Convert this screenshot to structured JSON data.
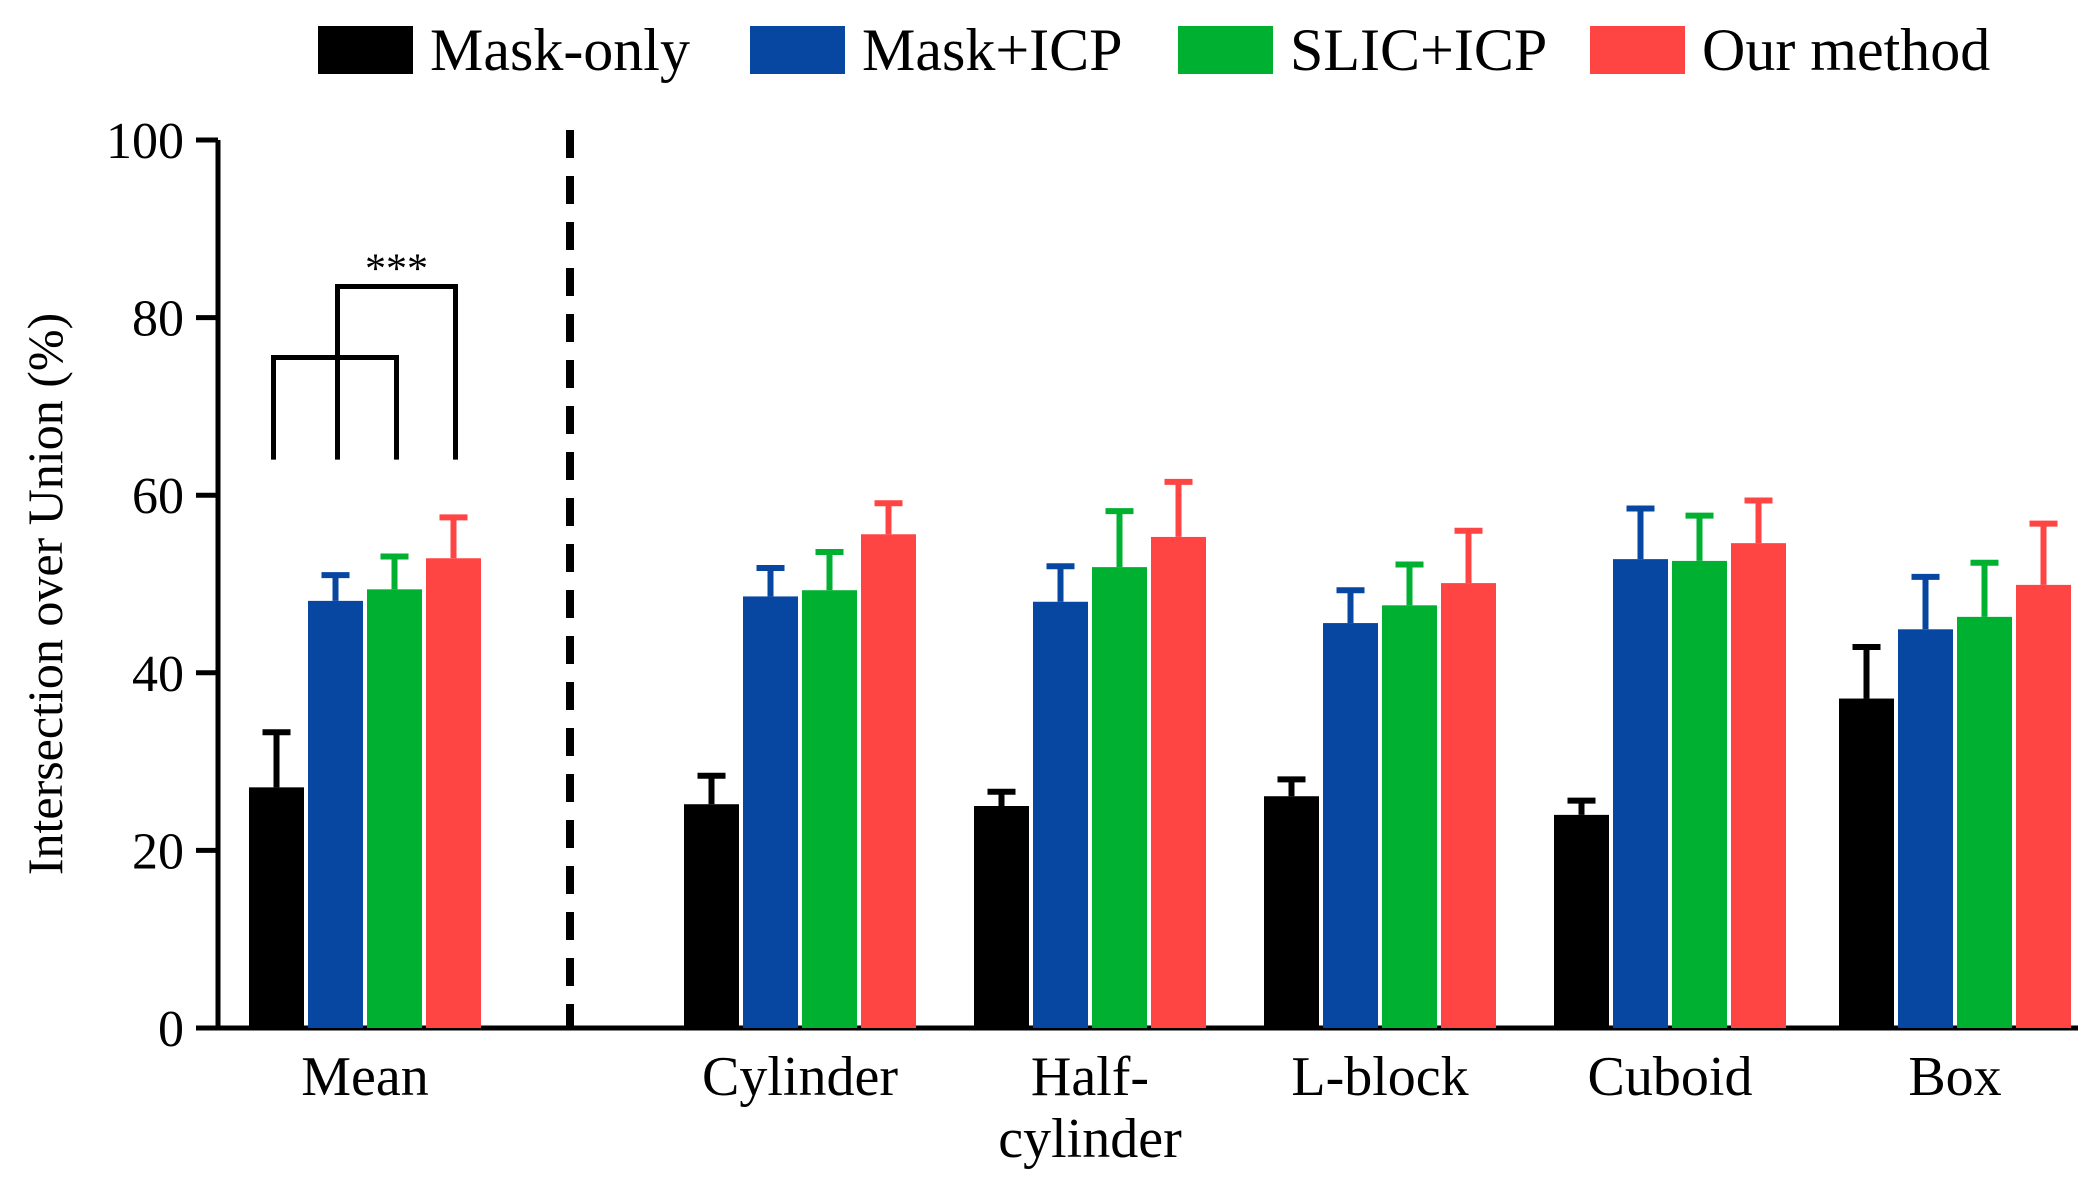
{
  "chart_data": {
    "type": "bar",
    "title": "",
    "xlabel": "",
    "ylabel": "Intersection over Union (%)",
    "ylim": [
      0,
      100
    ],
    "yticks": [
      0,
      20,
      40,
      60,
      80,
      100
    ],
    "categories": [
      "Mean",
      "Cylinder",
      "Half-\ncylinder",
      "L-block",
      "Cuboid",
      "Box"
    ],
    "series": [
      {
        "name": "Mask-only",
        "color": "#000000",
        "values": [
          27.1,
          25.2,
          25.0,
          26.1,
          24.0,
          37.1
        ],
        "errors": [
          6.2,
          3.2,
          1.6,
          1.9,
          1.6,
          5.8
        ]
      },
      {
        "name": "Mask+ICP",
        "color": "#0747a1",
        "values": [
          48.1,
          48.6,
          48.0,
          45.6,
          52.8,
          44.9
        ],
        "errors": [
          2.9,
          3.2,
          4.0,
          3.7,
          5.7,
          5.9
        ]
      },
      {
        "name": "SLIC+ICP",
        "color": "#00b030",
        "values": [
          49.4,
          49.3,
          51.9,
          47.6,
          52.6,
          46.3
        ],
        "errors": [
          3.7,
          4.3,
          6.3,
          4.6,
          5.1,
          6.1
        ]
      },
      {
        "name": "Our method",
        "color": "#ff4444",
        "values": [
          52.9,
          55.6,
          55.3,
          50.1,
          54.6,
          49.9
        ],
        "errors": [
          4.6,
          3.5,
          6.2,
          5.9,
          4.8,
          6.9
        ]
      }
    ],
    "legend": "top",
    "grid": false,
    "separator_after_category": 0,
    "annotations": [
      {
        "text": "***",
        "type": "significance-brackets",
        "category": "Mean"
      }
    ]
  }
}
